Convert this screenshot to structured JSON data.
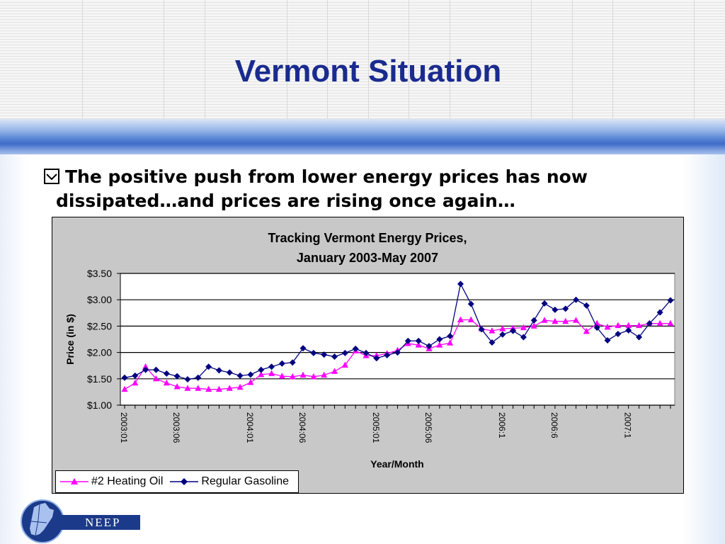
{
  "slide": {
    "title": "Vermont Situation",
    "bullet_line1": "The positive push from lower energy prices has now",
    "bullet_line2": "dissipated…and prices are rising once again…",
    "logo_text": "NEEP"
  },
  "colors": {
    "title": "#1a2b8f",
    "heating_oil": "#ff00ff",
    "gasoline": "#000080",
    "plot_bg": "#ffffff",
    "chart_bg": "#c8c8c8"
  },
  "chart_data": {
    "type": "line",
    "title": "Tracking Vermont Energy Prices,",
    "subtitle": "January 2003-May 2007",
    "xlabel": "Year/Month",
    "ylabel": "Price (in $)",
    "ylim": [
      1.0,
      3.5
    ],
    "yticks": [
      1.0,
      1.5,
      2.0,
      2.5,
      3.0,
      3.5
    ],
    "ytick_labels": [
      "$1.00",
      "$1.50",
      "$2.00",
      "$2.50",
      "$3.00",
      "$3.50"
    ],
    "x_tick_labels": [
      {
        "index": 0,
        "label": "2003:01"
      },
      {
        "index": 5,
        "label": "2003:06"
      },
      {
        "index": 12,
        "label": "2004:01"
      },
      {
        "index": 17,
        "label": "2004:06"
      },
      {
        "index": 24,
        "label": "2005:01"
      },
      {
        "index": 29,
        "label": "2005:06"
      },
      {
        "index": 36,
        "label": "2006:1"
      },
      {
        "index": 41,
        "label": "2006:6"
      },
      {
        "index": 48,
        "label": "2007:1"
      }
    ],
    "num_points": 53,
    "grid": true,
    "legend_position": "bottom-left",
    "series": [
      {
        "name": "#2 Heating Oil",
        "marker": "triangle",
        "values": [
          1.3,
          1.42,
          1.73,
          1.5,
          1.42,
          1.35,
          1.32,
          1.32,
          1.3,
          1.3,
          1.32,
          1.34,
          1.43,
          1.58,
          1.6,
          1.55,
          1.54,
          1.57,
          1.54,
          1.57,
          1.64,
          1.76,
          2.03,
          1.94,
          1.94,
          1.98,
          2.04,
          2.17,
          2.14,
          2.07,
          2.14,
          2.18,
          2.62,
          2.62,
          2.45,
          2.41,
          2.45,
          2.46,
          2.47,
          2.5,
          2.61,
          2.59,
          2.59,
          2.61,
          2.4,
          2.55,
          2.48,
          2.51,
          2.51,
          2.51,
          2.55,
          2.55,
          2.55
        ]
      },
      {
        "name": "Regular Gasoline",
        "marker": "diamond",
        "values": [
          1.52,
          1.56,
          1.67,
          1.67,
          1.6,
          1.55,
          1.49,
          1.52,
          1.73,
          1.66,
          1.62,
          1.56,
          1.58,
          1.67,
          1.73,
          1.79,
          1.81,
          2.08,
          1.99,
          1.96,
          1.92,
          1.99,
          2.07,
          1.99,
          1.89,
          1.95,
          2.0,
          2.22,
          2.22,
          2.12,
          2.25,
          2.31,
          3.3,
          2.92,
          2.44,
          2.19,
          2.34,
          2.41,
          2.29,
          2.61,
          2.93,
          2.81,
          2.83,
          3.0,
          2.89,
          2.47,
          2.23,
          2.35,
          2.42,
          2.29,
          2.55,
          2.76,
          2.99
        ]
      }
    ]
  }
}
